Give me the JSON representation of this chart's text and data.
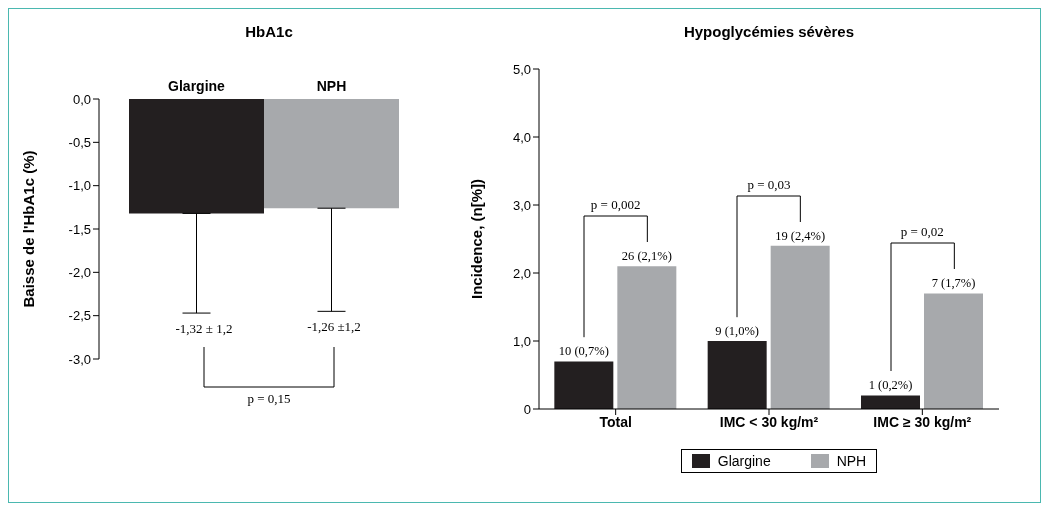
{
  "chart_data": [
    {
      "type": "bar",
      "title": "HbA1c",
      "ylabel": "Baisse de l'HbA1c (%)",
      "categories": [
        "Glargine",
        "NPH"
      ],
      "values": [
        -1.32,
        -1.26
      ],
      "colors": [
        "#231f20",
        "#a7a9ac"
      ],
      "errors": [
        [
          -2.47,
          -1.32
        ],
        [
          -2.45,
          -1.26
        ]
      ],
      "ylim": [
        -3,
        0
      ],
      "yticks": [
        {
          "value": -3,
          "label": "-3,0"
        },
        {
          "value": -2.5,
          "label": "-2,5"
        },
        {
          "value": -2,
          "label": "-2,0"
        },
        {
          "value": -1.5,
          "label": "-1,5"
        },
        {
          "value": -1,
          "label": "-1,0"
        },
        {
          "value": -0.5,
          "label": "-0,5"
        },
        {
          "value": 0,
          "label": "0,0"
        }
      ],
      "annotations": [
        "-1,32 ± 1,2",
        "-1,26 ±1,2",
        "p = 0,15"
      ],
      "grid": false
    },
    {
      "type": "bar",
      "title": "Hypoglycémies sévères",
      "ylabel": "Incidence, (n[%])",
      "categories": [
        "Total",
        "IMC < 30 kg/m²",
        "IMC ≥ 30 kg/m²"
      ],
      "series": [
        {
          "name": "Glargine",
          "color": "#231f20",
          "values": [
            0.7,
            1.0,
            0.2
          ],
          "value_labels": [
            "10 (0,7%)",
            "9 (1,0%)",
            "1 (0,2%)"
          ]
        },
        {
          "name": "NPH",
          "color": "#a7a9ac",
          "values": [
            2.1,
            2.4,
            1.7
          ],
          "value_labels": [
            "26 (2,1%)",
            "19 (2,4%)",
            "7 (1,7%)"
          ]
        }
      ],
      "ylim": [
        0,
        5
      ],
      "yticks": [
        0,
        {
          "value": 1,
          "label": "1,0"
        },
        {
          "value": 2,
          "label": "2,0"
        },
        {
          "value": 3,
          "label": "3,0"
        },
        {
          "value": 4,
          "label": "4,0"
        },
        {
          "value": 5,
          "label": "5,0"
        }
      ],
      "annotations": [
        "p = 0,002",
        "p = 0,03",
        "p = 0,02"
      ],
      "grid": false,
      "legend": "bottom"
    }
  ]
}
